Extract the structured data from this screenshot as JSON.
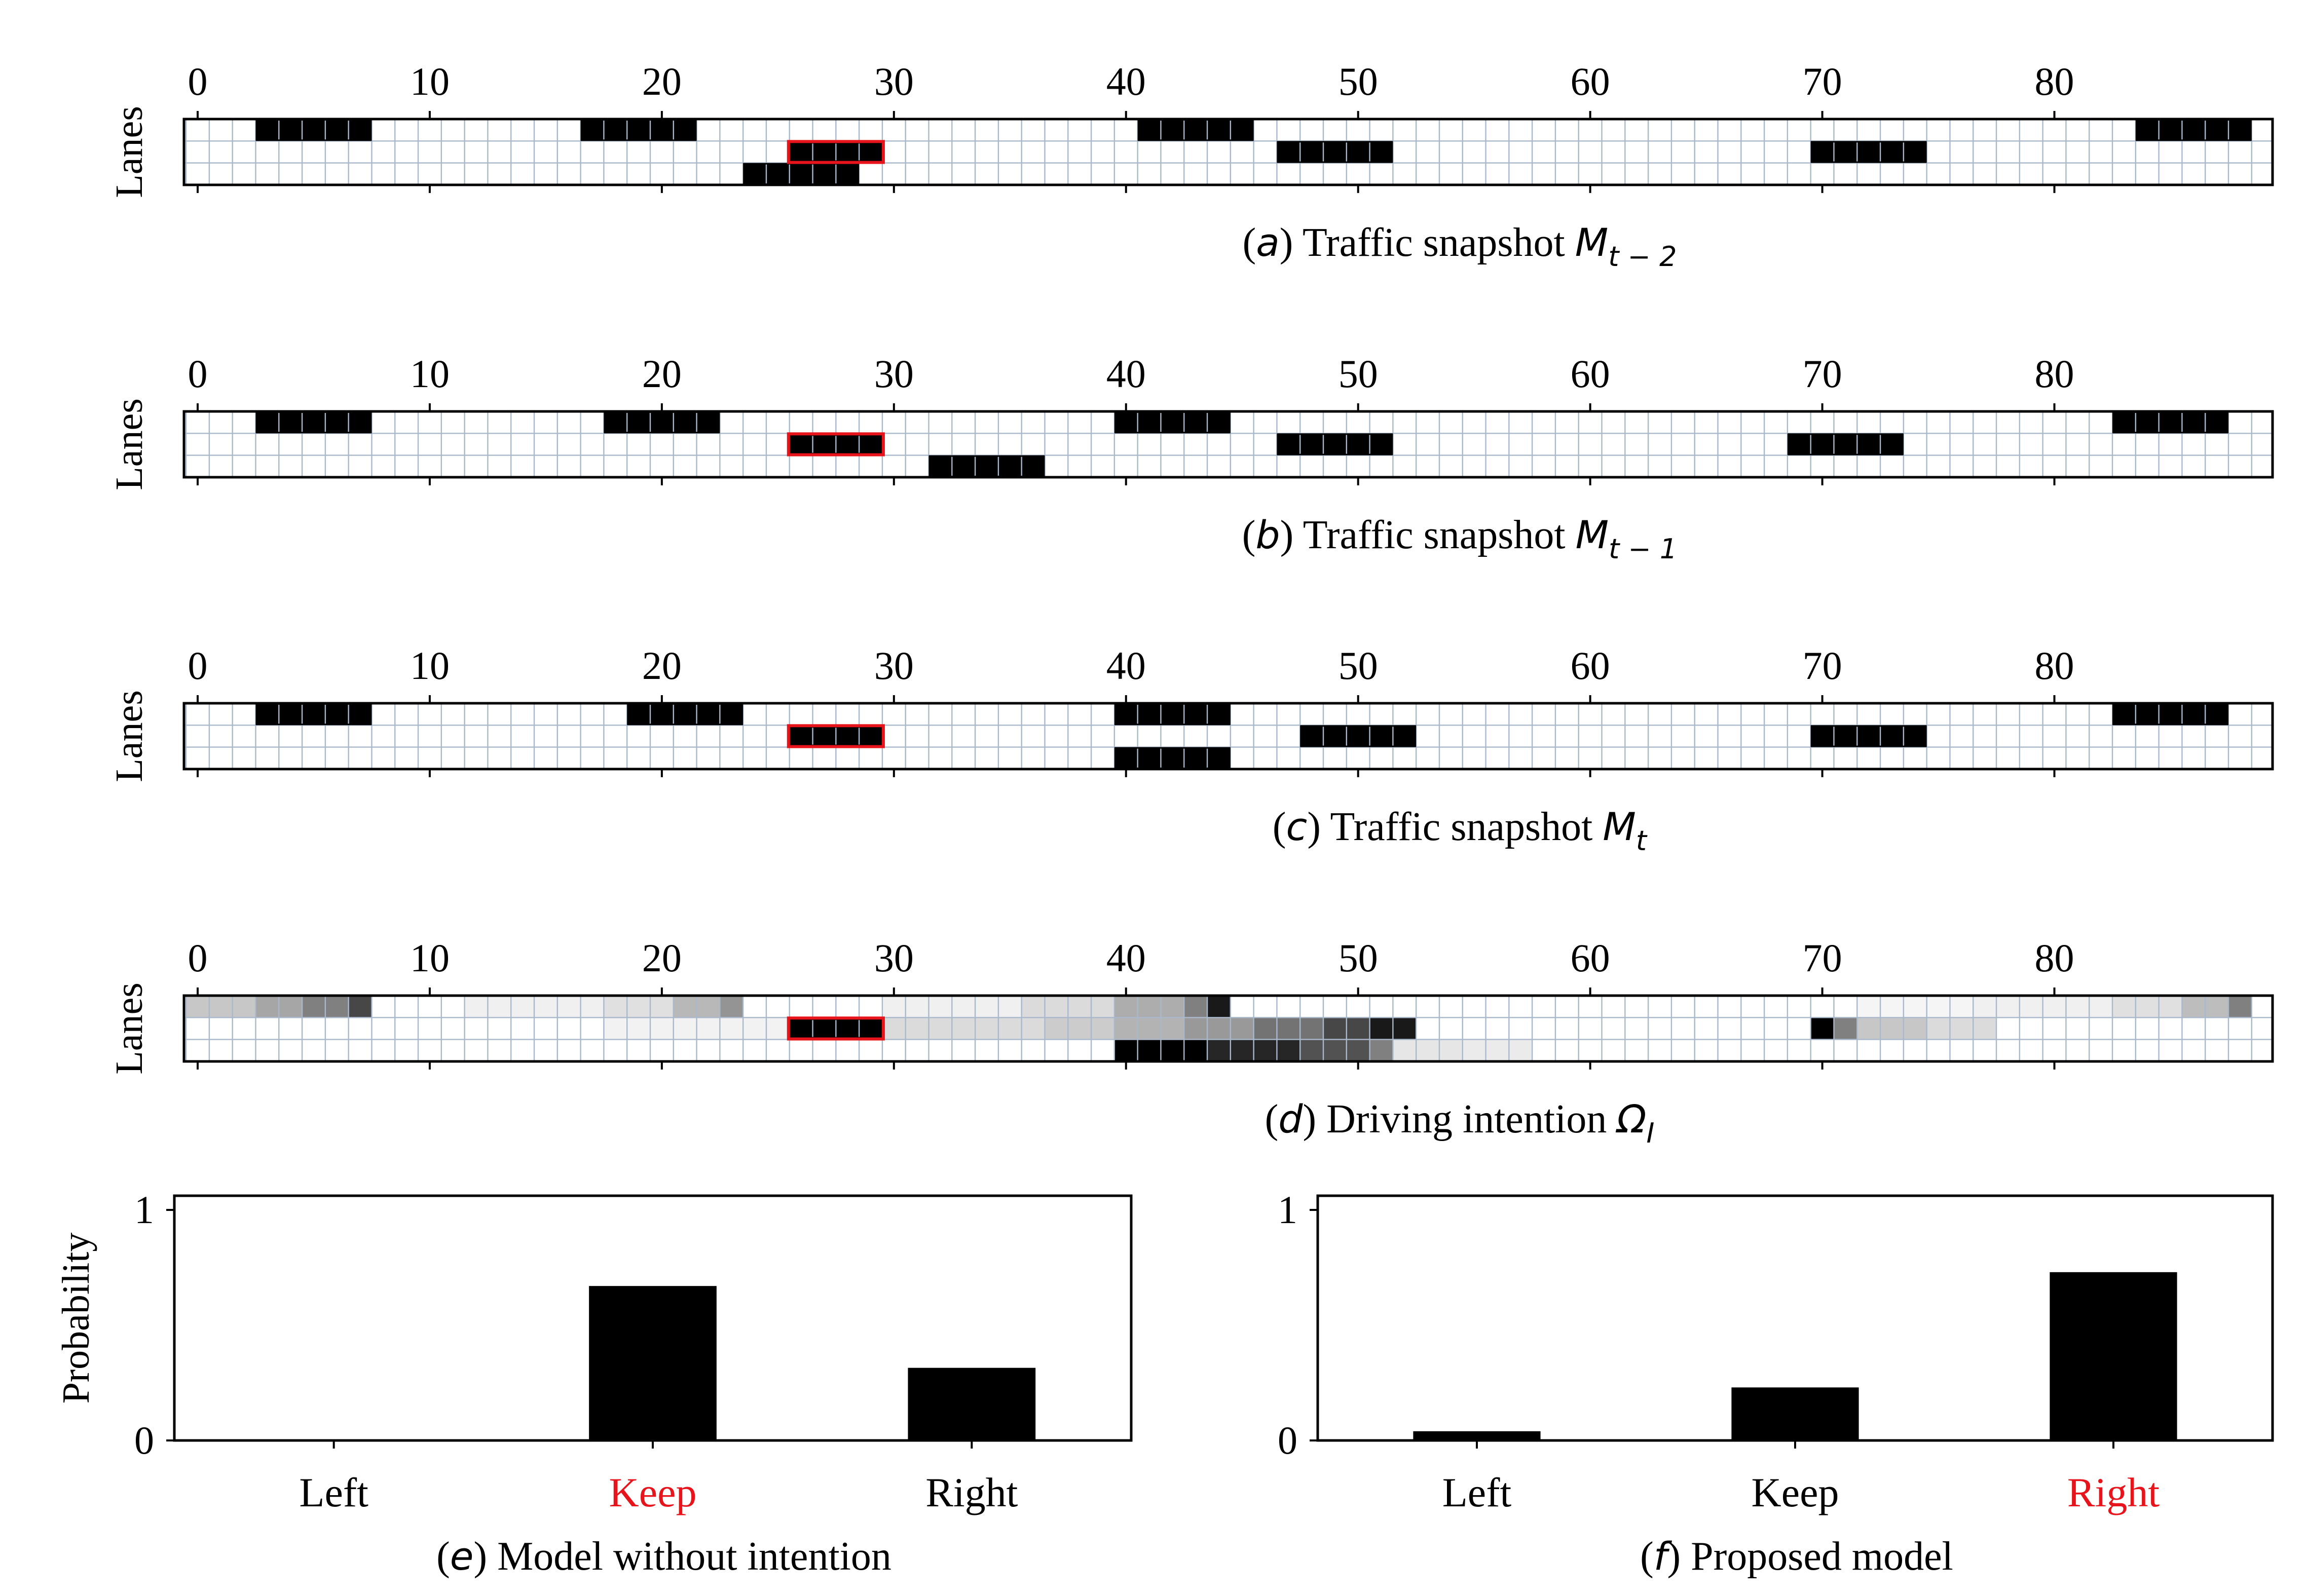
{
  "colors": {
    "grid": "#aab8cc",
    "axis": "#000000",
    "vehicle": "#000000",
    "ego_outline": "#e8141c",
    "bar": "#000000",
    "highlight_label": "#e8141c",
    "label": "#000000",
    "cell_empty": "#ffffff"
  },
  "chart_data": [
    {
      "type": "heatmap",
      "id": "a",
      "caption": {
        "prefix": "(",
        "letter": "a",
        "suffix": ") Traffic snapshot ",
        "math": "M",
        "sub": "t − 2"
      },
      "ylabel": "Lanes",
      "xticks": [
        "0",
        "10",
        "20",
        "30",
        "40",
        "50",
        "60",
        "70",
        "80"
      ],
      "grid": true,
      "columns": 90,
      "lanes": 3,
      "vehicles": [
        {
          "lane": 0,
          "start": 3,
          "length": 5
        },
        {
          "lane": 0,
          "start": 17,
          "length": 5
        },
        {
          "lane": 0,
          "start": 41,
          "length": 5
        },
        {
          "lane": 0,
          "start": 84,
          "length": 5
        },
        {
          "lane": 1,
          "start": 47,
          "length": 5
        },
        {
          "lane": 1,
          "start": 70,
          "length": 5
        },
        {
          "lane": 2,
          "start": 24,
          "length": 5
        }
      ],
      "ego": {
        "lane": 1,
        "start": 26,
        "length": 4
      }
    },
    {
      "type": "heatmap",
      "id": "b",
      "caption": {
        "prefix": "(",
        "letter": "b",
        "suffix": ") Traffic snapshot ",
        "math": "M",
        "sub": "t − 1"
      },
      "ylabel": "Lanes",
      "xticks": [
        "0",
        "10",
        "20",
        "30",
        "40",
        "50",
        "60",
        "70",
        "80"
      ],
      "grid": true,
      "columns": 90,
      "lanes": 3,
      "vehicles": [
        {
          "lane": 0,
          "start": 3,
          "length": 5
        },
        {
          "lane": 0,
          "start": 18,
          "length": 5
        },
        {
          "lane": 0,
          "start": 40,
          "length": 5
        },
        {
          "lane": 0,
          "start": 83,
          "length": 5
        },
        {
          "lane": 1,
          "start": 47,
          "length": 5
        },
        {
          "lane": 1,
          "start": 69,
          "length": 5
        },
        {
          "lane": 2,
          "start": 32,
          "length": 5
        }
      ],
      "ego": {
        "lane": 1,
        "start": 26,
        "length": 4
      }
    },
    {
      "type": "heatmap",
      "id": "c",
      "caption": {
        "prefix": "(",
        "letter": "c",
        "suffix": ") Traffic snapshot ",
        "math": "M",
        "sub": "t"
      },
      "ylabel": "Lanes",
      "xticks": [
        "0",
        "10",
        "20",
        "30",
        "40",
        "50",
        "60",
        "70",
        "80"
      ],
      "grid": true,
      "columns": 90,
      "lanes": 3,
      "vehicles": [
        {
          "lane": 0,
          "start": 3,
          "length": 5
        },
        {
          "lane": 0,
          "start": 19,
          "length": 5
        },
        {
          "lane": 0,
          "start": 40,
          "length": 5
        },
        {
          "lane": 0,
          "start": 83,
          "length": 5
        },
        {
          "lane": 1,
          "start": 48,
          "length": 5
        },
        {
          "lane": 1,
          "start": 70,
          "length": 5
        },
        {
          "lane": 2,
          "start": 40,
          "length": 5
        }
      ],
      "ego": {
        "lane": 1,
        "start": 26,
        "length": 4
      }
    },
    {
      "type": "heatmap",
      "id": "d",
      "caption": {
        "prefix": "(",
        "letter": "d",
        "suffix": ") Driving intention ",
        "math": "Ω",
        "sub": "I"
      },
      "ylabel": "Lanes",
      "xticks": [
        "0",
        "10",
        "20",
        "30",
        "40",
        "50",
        "60",
        "70",
        "80"
      ],
      "grid": true,
      "columns": 90,
      "lanes": 3,
      "intensity_segments": [
        {
          "lane": 0,
          "start": 0,
          "end": 2,
          "value": 0.22
        },
        {
          "lane": 0,
          "start": 3,
          "end": 4,
          "value": 0.35
        },
        {
          "lane": 0,
          "start": 5,
          "end": 6,
          "value": 0.5
        },
        {
          "lane": 0,
          "start": 7,
          "end": 7,
          "value": 0.72
        },
        {
          "lane": 0,
          "start": 12,
          "end": 17,
          "value": 0.06
        },
        {
          "lane": 0,
          "start": 18,
          "end": 20,
          "value": 0.12
        },
        {
          "lane": 0,
          "start": 21,
          "end": 22,
          "value": 0.28
        },
        {
          "lane": 0,
          "start": 23,
          "end": 23,
          "value": 0.42
        },
        {
          "lane": 0,
          "start": 30,
          "end": 35,
          "value": 0.06
        },
        {
          "lane": 0,
          "start": 36,
          "end": 39,
          "value": 0.14
        },
        {
          "lane": 0,
          "start": 40,
          "end": 42,
          "value": 0.32
        },
        {
          "lane": 0,
          "start": 43,
          "end": 43,
          "value": 0.5
        },
        {
          "lane": 0,
          "start": 44,
          "end": 44,
          "value": 0.9
        },
        {
          "lane": 0,
          "start": 72,
          "end": 76,
          "value": 0.04
        },
        {
          "lane": 0,
          "start": 77,
          "end": 82,
          "value": 0.06
        },
        {
          "lane": 0,
          "start": 83,
          "end": 85,
          "value": 0.12
        },
        {
          "lane": 0,
          "start": 86,
          "end": 87,
          "value": 0.26
        },
        {
          "lane": 0,
          "start": 88,
          "end": 88,
          "value": 0.5
        },
        {
          "lane": 1,
          "start": 18,
          "end": 25,
          "value": 0.05
        },
        {
          "lane": 1,
          "start": 30,
          "end": 36,
          "value": 0.14
        },
        {
          "lane": 1,
          "start": 37,
          "end": 39,
          "value": 0.2
        },
        {
          "lane": 1,
          "start": 40,
          "end": 42,
          "value": 0.3
        },
        {
          "lane": 1,
          "start": 43,
          "end": 45,
          "value": 0.4
        },
        {
          "lane": 1,
          "start": 46,
          "end": 48,
          "value": 0.55
        },
        {
          "lane": 1,
          "start": 49,
          "end": 50,
          "value": 0.72
        },
        {
          "lane": 1,
          "start": 51,
          "end": 52,
          "value": 0.9
        },
        {
          "lane": 1,
          "start": 70,
          "end": 70,
          "value": 1.0
        },
        {
          "lane": 1,
          "start": 71,
          "end": 71,
          "value": 0.5
        },
        {
          "lane": 1,
          "start": 72,
          "end": 74,
          "value": 0.22
        },
        {
          "lane": 1,
          "start": 75,
          "end": 77,
          "value": 0.14
        },
        {
          "lane": 2,
          "start": 40,
          "end": 43,
          "value": 1.0
        },
        {
          "lane": 2,
          "start": 44,
          "end": 47,
          "value": 0.85
        },
        {
          "lane": 2,
          "start": 48,
          "end": 50,
          "value": 0.68
        },
        {
          "lane": 2,
          "start": 51,
          "end": 51,
          "value": 0.5
        },
        {
          "lane": 2,
          "start": 52,
          "end": 54,
          "value": 0.1
        },
        {
          "lane": 2,
          "start": 55,
          "end": 57,
          "value": 0.08
        }
      ],
      "ego": {
        "lane": 1,
        "start": 26,
        "length": 4
      }
    },
    {
      "type": "bar",
      "id": "e",
      "caption": {
        "prefix": "(",
        "letter": "e",
        "suffix": ") Model without intention"
      },
      "ylabel": "Probability",
      "categories": [
        "Left",
        "Keep",
        "Right"
      ],
      "values": [
        0.005,
        0.67,
        0.315
      ],
      "highlight": "Keep",
      "yticks": [
        "0",
        "1"
      ],
      "ylim": [
        0,
        1.05
      ]
    },
    {
      "type": "bar",
      "id": "f",
      "caption": {
        "prefix": "(",
        "letter": "f",
        "suffix": ") Proposed model"
      },
      "ylabel": "",
      "categories": [
        "Left",
        "Keep",
        "Right"
      ],
      "values": [
        0.04,
        0.23,
        0.73
      ],
      "highlight": "Right",
      "yticks": [
        "0",
        "1"
      ],
      "ylim": [
        0,
        1.05
      ]
    }
  ]
}
